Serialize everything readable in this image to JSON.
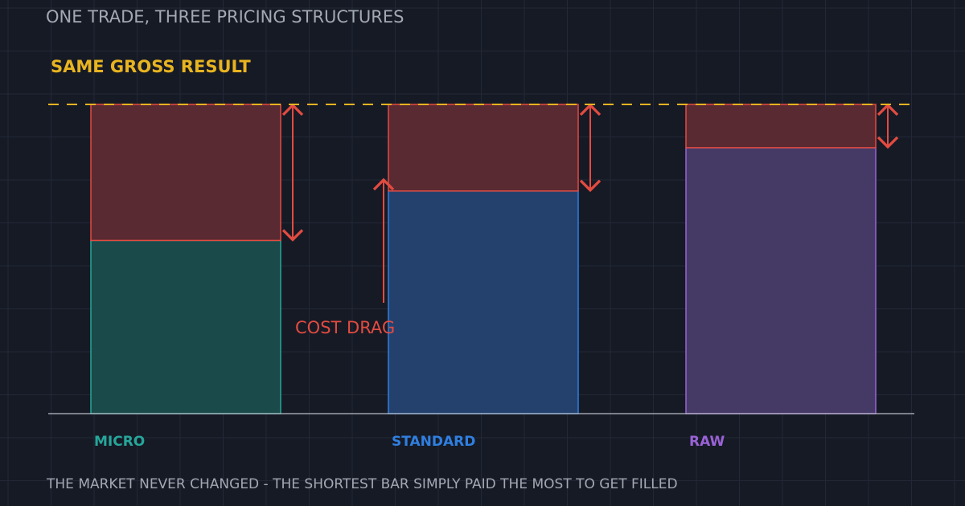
{
  "header": {
    "title": "ONE TRADE, THREE PRICING STRUCTURES"
  },
  "annotations": {
    "reference_label": "SAME GROSS RESULT",
    "cost_label": "COST DRAG"
  },
  "footer": {
    "caption": "THE MARKET NEVER CHANGED  -  THE SHORTEST BAR SIMPLY PAID THE MOST TO GET FILLED"
  },
  "colors": {
    "background": "#161a25",
    "grid": "#232838",
    "baseline": "#b9bdc7",
    "reference_line": "#e8b420",
    "cost_fill": "#5a2a32",
    "cost_stroke": "#e34b40",
    "text_muted": "#a3a8b3"
  },
  "chart_data": {
    "type": "bar",
    "stacked": true,
    "categories": [
      "MICRO",
      "STANDARD",
      "RAW"
    ],
    "category_colors": [
      "#26a69a",
      "#2f7fe0",
      "#9a62d6"
    ],
    "series": [
      {
        "key": "net",
        "values": [
          56,
          72,
          86
        ],
        "fills": [
          "#1b4a4a",
          "#24416e",
          "#453a66"
        ]
      },
      {
        "key": "cost",
        "values": [
          44,
          28,
          14
        ]
      }
    ],
    "reference": {
      "value": 100,
      "label": "SAME GROSS RESULT"
    },
    "ylim": [
      0,
      100
    ],
    "grid": true,
    "axis_labels_visible": false
  }
}
